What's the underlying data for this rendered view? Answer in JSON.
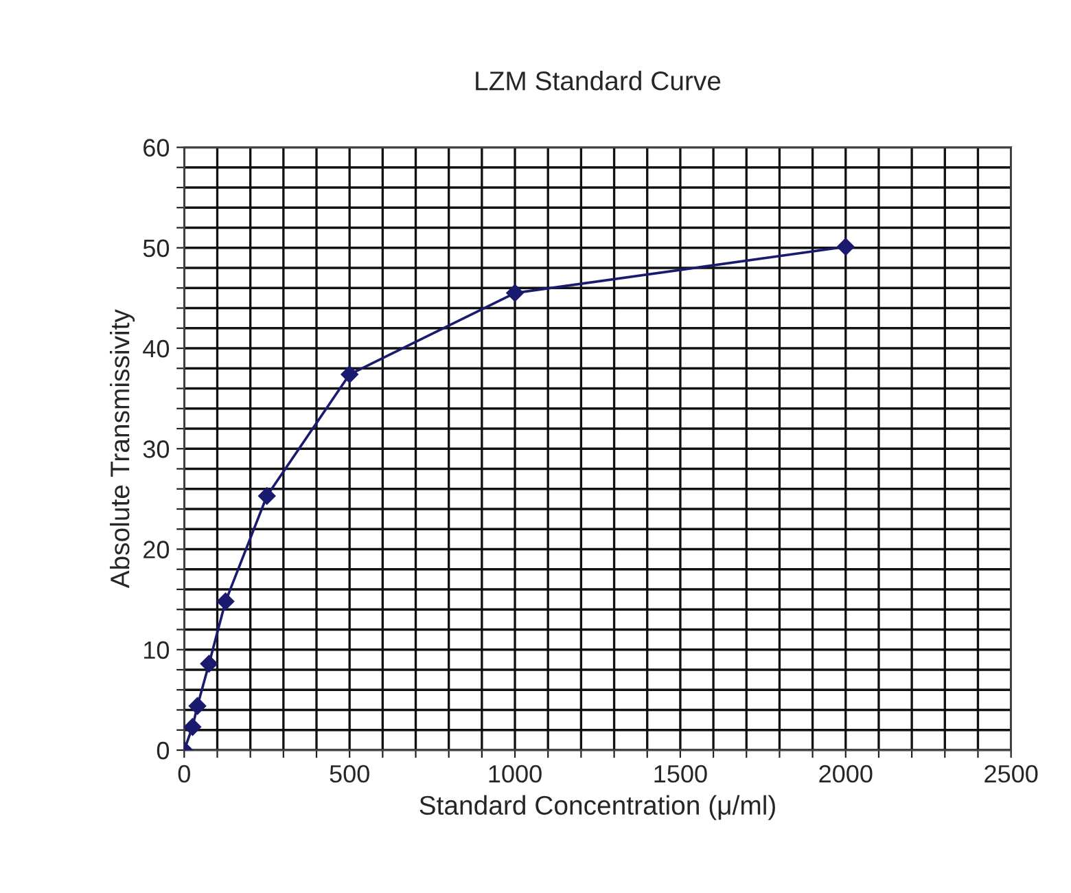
{
  "chart_data": {
    "type": "line",
    "title": "LZM Standard Curve",
    "xlabel": "Standard Concentration (μ/ml)",
    "ylabel": "Absolute Transmissivity",
    "x": [
      0,
      25,
      40,
      75,
      125,
      250,
      500,
      1000,
      2000
    ],
    "series": [
      {
        "color": "#1a1a6e",
        "values": [
          0,
          2.3,
          4.4,
          8.6,
          14.8,
          25.3,
          37.4,
          45.5,
          50.1
        ]
      }
    ],
    "marker": "diamond",
    "line_style": "solid",
    "grid": true,
    "xlim": [
      0,
      2500
    ],
    "ylim": [
      0,
      60
    ],
    "xticks": [
      0,
      {
        "value": 100,
        "label": null
      },
      {
        "value": 200,
        "label": null
      },
      {
        "value": 300,
        "label": null
      },
      {
        "value": 400,
        "label": null
      },
      500,
      {
        "value": 600,
        "label": null
      },
      {
        "value": 700,
        "label": null
      },
      {
        "value": 800,
        "label": null
      },
      {
        "value": 900,
        "label": null
      },
      1000,
      {
        "value": 1100,
        "label": null
      },
      {
        "value": 1200,
        "label": null
      },
      {
        "value": 1300,
        "label": null
      },
      {
        "value": 1400,
        "label": null
      },
      1500,
      {
        "value": 1600,
        "label": null
      },
      {
        "value": 1700,
        "label": null
      },
      {
        "value": 1800,
        "label": null
      },
      {
        "value": 1900,
        "label": null
      },
      2000,
      {
        "value": 2100,
        "label": null
      },
      {
        "value": 2200,
        "label": null
      },
      {
        "value": 2300,
        "label": null
      },
      {
        "value": 2400,
        "label": null
      },
      2500
    ],
    "yticks": [
      0,
      {
        "value": 2,
        "label": null
      },
      {
        "value": 4,
        "label": null
      },
      {
        "value": 6,
        "label": null
      },
      {
        "value": 8,
        "label": null
      },
      10,
      {
        "value": 12,
        "label": null
      },
      {
        "value": 14,
        "label": null
      },
      {
        "value": 16,
        "label": null
      },
      {
        "value": 18,
        "label": null
      },
      20,
      {
        "value": 22,
        "label": null
      },
      {
        "value": 24,
        "label": null
      },
      {
        "value": 26,
        "label": null
      },
      {
        "value": 28,
        "label": null
      },
      30,
      {
        "value": 32,
        "label": null
      },
      {
        "value": 34,
        "label": null
      },
      {
        "value": 36,
        "label": null
      },
      {
        "value": 38,
        "label": null
      },
      40,
      {
        "value": 42,
        "label": null
      },
      {
        "value": 44,
        "label": null
      },
      {
        "value": 46,
        "label": null
      },
      {
        "value": 48,
        "label": null
      },
      50,
      {
        "value": 52,
        "label": null
      },
      {
        "value": 54,
        "label": null
      },
      {
        "value": 56,
        "label": null
      },
      {
        "value": 58,
        "label": null
      },
      60
    ]
  }
}
